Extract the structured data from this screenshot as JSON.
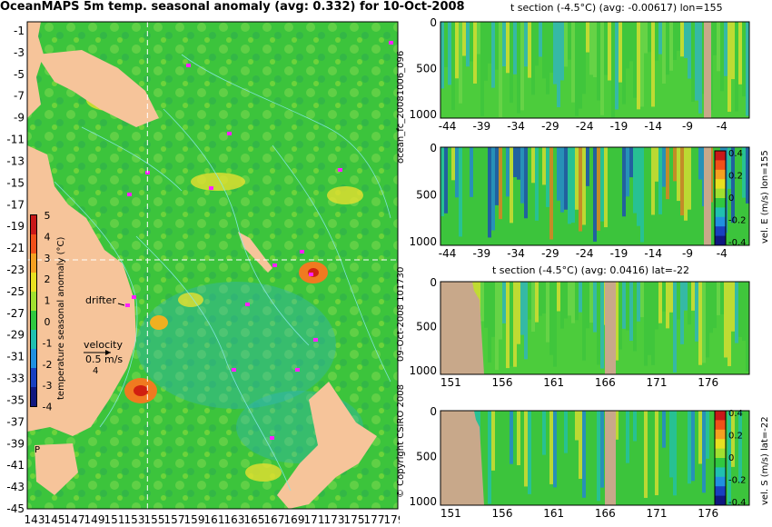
{
  "title": "OceanMAPS 5m temp. seasonal anomaly (avg: 0.332) for 10-Oct-2008",
  "side_labels": {
    "forecast": "ocean_fc_20081006_096",
    "date": "09-Oct-2008 101730",
    "copyright": "© Copyright CSIRO 2008"
  },
  "colors": {
    "land": "#f6c49a",
    "land_section": "#c8a88a",
    "contour": "#86e8e8",
    "drifter": "#ff20ff"
  },
  "chart_data": [
    {
      "type": "heatmap",
      "name": "map",
      "title": "OceanMAPS 5m temp. seasonal anomaly (avg: 0.332) for 10-Oct-2008",
      "xlim": [
        143,
        180
      ],
      "ylim": [
        -45,
        0
      ],
      "x_ticks": [
        "143",
        "145",
        "147",
        "149",
        "151",
        "153",
        "155",
        "157",
        "159",
        "161",
        "163",
        "165",
        "167",
        "169",
        "171",
        "173",
        "175",
        "177",
        "179"
      ],
      "y_ticks": [
        "-1",
        "-3",
        "-5",
        "-7",
        "-9",
        "-11",
        "-13",
        "-15",
        "-17",
        "-19",
        "-21",
        "-23",
        "-25",
        "-27",
        "-29",
        "-31",
        "-33",
        "-35",
        "-37",
        "-39",
        "-41",
        "-43",
        "-45"
      ],
      "section_lines": {
        "lon": 155,
        "lat": -22
      },
      "colorbar": {
        "label": "temperature seasonal anomaly (°C)",
        "ticks": [
          "5",
          "4",
          "3",
          "2",
          "1",
          "0",
          "-1",
          "-2",
          "-3",
          "-4"
        ],
        "range": [
          -4,
          5
        ]
      },
      "annotations": {
        "drifter": "drifter",
        "velocity": "velocity",
        "vel_value": "0.5 m/s",
        "vel_value2": "4",
        "P": "P"
      }
    },
    {
      "type": "heatmap",
      "name": "t-section-lon155",
      "title": "t section (-4.5°C) (avg: -0.00617) lon=155",
      "x_ticks": [
        "-44",
        "-39",
        "-34",
        "-29",
        "-24",
        "-19",
        "-14",
        "-9",
        "-4"
      ],
      "y_ticks": [
        "0",
        "500",
        "1000"
      ],
      "xlim": [
        -45,
        0
      ],
      "ylim": [
        1050,
        0
      ]
    },
    {
      "type": "heatmap",
      "name": "vel-e-section-lon155",
      "title": "",
      "x_ticks": [
        "-44",
        "-39",
        "-34",
        "-29",
        "-24",
        "-19",
        "-14",
        "-9",
        "-4"
      ],
      "y_ticks": [
        "0",
        "500",
        "1000"
      ],
      "xlim": [
        -45,
        0
      ],
      "ylim": [
        1050,
        0
      ],
      "colorbar": {
        "label": "vel. E (m/s) lon=155",
        "ticks": [
          "0.4",
          "0.2",
          "0",
          "-0.2",
          "-0.4"
        ],
        "range": [
          -0.4,
          0.4
        ]
      }
    },
    {
      "type": "heatmap",
      "name": "t-section-lat-22",
      "title": "t section (-4.5°C) (avg: 0.0416) lat=-22",
      "x_ticks": [
        "151",
        "156",
        "161",
        "166",
        "171",
        "176"
      ],
      "y_ticks": [
        "0",
        "500",
        "1000"
      ],
      "xlim": [
        150,
        180
      ],
      "ylim": [
        1050,
        0
      ]
    },
    {
      "type": "heatmap",
      "name": "vel-s-section-lat-22",
      "title": "",
      "x_ticks": [
        "151",
        "156",
        "161",
        "166",
        "171",
        "176"
      ],
      "y_ticks": [
        "0",
        "500",
        "1000"
      ],
      "xlim": [
        150,
        180
      ],
      "ylim": [
        1050,
        0
      ],
      "colorbar": {
        "label": "vel. S (m/s) lat=-22",
        "ticks": [
          "0.4",
          "0.2",
          "0",
          "-0.2",
          "-0.4"
        ],
        "range": [
          -0.4,
          0.4
        ]
      }
    }
  ]
}
